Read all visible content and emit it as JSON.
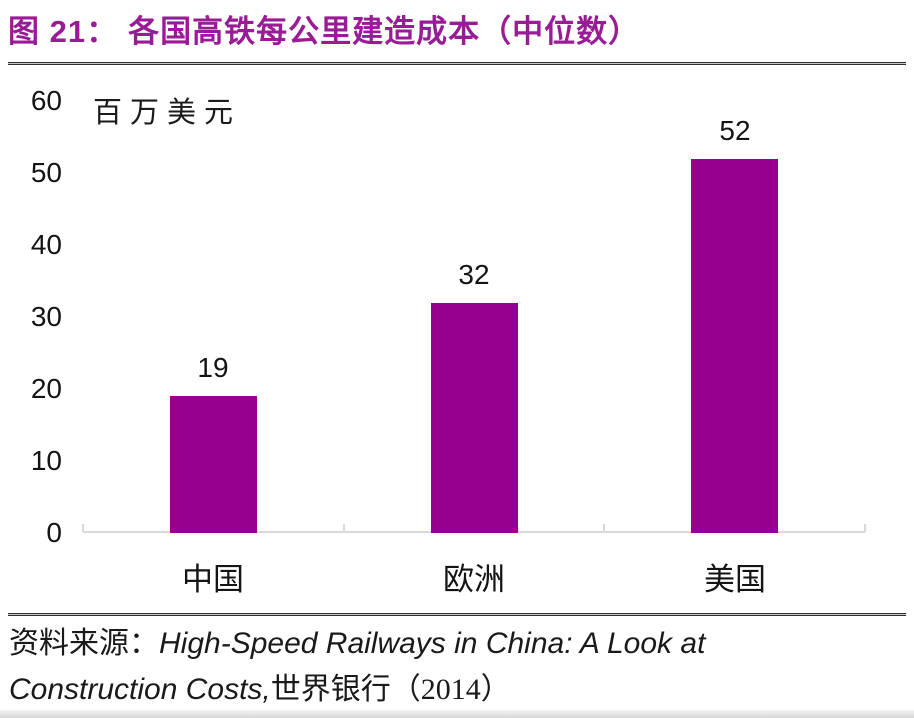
{
  "figure": {
    "title_prefix": "图 21：",
    "title_text": "各国高铁每公里建造成本（中位数）",
    "title_color": "#9a1b96"
  },
  "chart_data": {
    "type": "bar",
    "title": "各国高铁每公里建造成本（中位数）",
    "unit_label": "百万美元",
    "categories": [
      "中国",
      "欧洲",
      "美国"
    ],
    "values": [
      19,
      32,
      52
    ],
    "data_labels": [
      "19",
      "32",
      "52"
    ],
    "yticks": [
      0,
      10,
      20,
      30,
      40,
      50,
      60
    ],
    "ylim": [
      0,
      60
    ],
    "bar_color": "#97008f",
    "axis_color": "#d9d9d9",
    "grid": false,
    "legend": "none"
  },
  "source": {
    "label": "资料来源：",
    "title_line1": "High-Speed Railways in China: A Look at",
    "title_line2": "Construction Costs,",
    "publisher": "世界银行（2014）"
  }
}
